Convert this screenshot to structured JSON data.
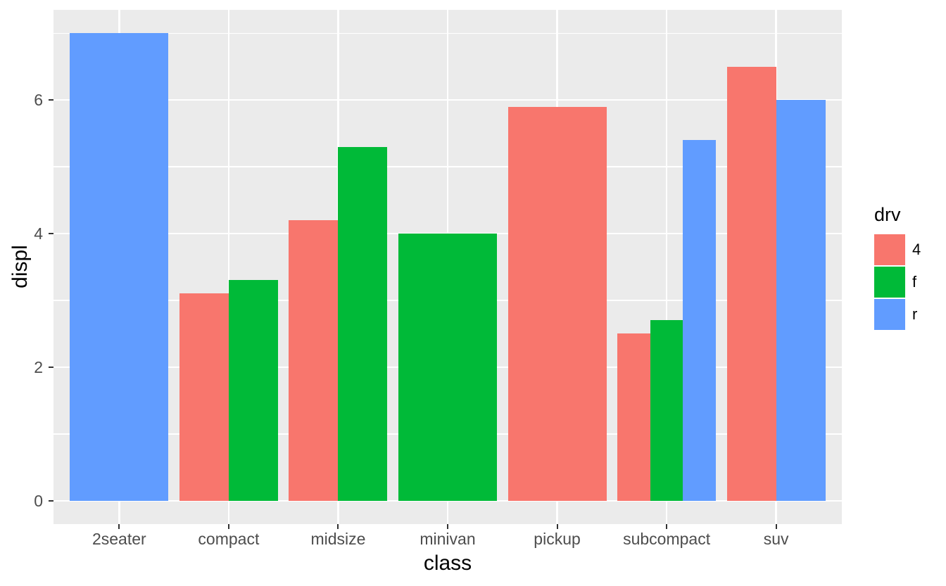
{
  "chart_data": {
    "type": "bar",
    "position": "dodge",
    "title": "",
    "xlabel": "class",
    "ylabel": "displ",
    "categories": [
      "2seater",
      "compact",
      "midsize",
      "minivan",
      "pickup",
      "subcompact",
      "suv"
    ],
    "bars": [
      {
        "category": "2seater",
        "drv": "r",
        "value": 7.0
      },
      {
        "category": "compact",
        "drv": "4",
        "value": 3.1
      },
      {
        "category": "compact",
        "drv": "f",
        "value": 3.3
      },
      {
        "category": "midsize",
        "drv": "4",
        "value": 4.2
      },
      {
        "category": "midsize",
        "drv": "f",
        "value": 5.3
      },
      {
        "category": "minivan",
        "drv": "f",
        "value": 4.0
      },
      {
        "category": "pickup",
        "drv": "4",
        "value": 5.9
      },
      {
        "category": "subcompact",
        "drv": "4",
        "value": 2.5
      },
      {
        "category": "subcompact",
        "drv": "f",
        "value": 2.7
      },
      {
        "category": "subcompact",
        "drv": "r",
        "value": 5.4
      },
      {
        "category": "suv",
        "drv": "4",
        "value": 6.5
      },
      {
        "category": "suv",
        "drv": "r",
        "value": 6.0
      }
    ],
    "series_colors": {
      "4": "#F8766D",
      "f": "#00BA38",
      "r": "#619CFF"
    },
    "bar_group_width": 0.9,
    "y_ticks": [
      "0",
      "2",
      "4",
      "6"
    ],
    "y_tick_values": [
      0,
      2,
      4,
      6
    ],
    "y_minor_values": [
      1,
      3,
      5,
      7
    ],
    "ylim": [
      -0.35,
      7.35
    ],
    "x_expand": 0.6,
    "grid": true,
    "legend": {
      "title": "drv",
      "position": "right",
      "entries": [
        {
          "label": "4",
          "color": "#F8766D"
        },
        {
          "label": "f",
          "color": "#00BA38"
        },
        {
          "label": "r",
          "color": "#619CFF"
        }
      ]
    },
    "colors": {
      "panel_bg": "#EBEBEB",
      "grid": "#FFFFFF",
      "tick_mark": "#333333",
      "tick_label": "#4D4D4D",
      "axis_title": "#000000"
    }
  }
}
